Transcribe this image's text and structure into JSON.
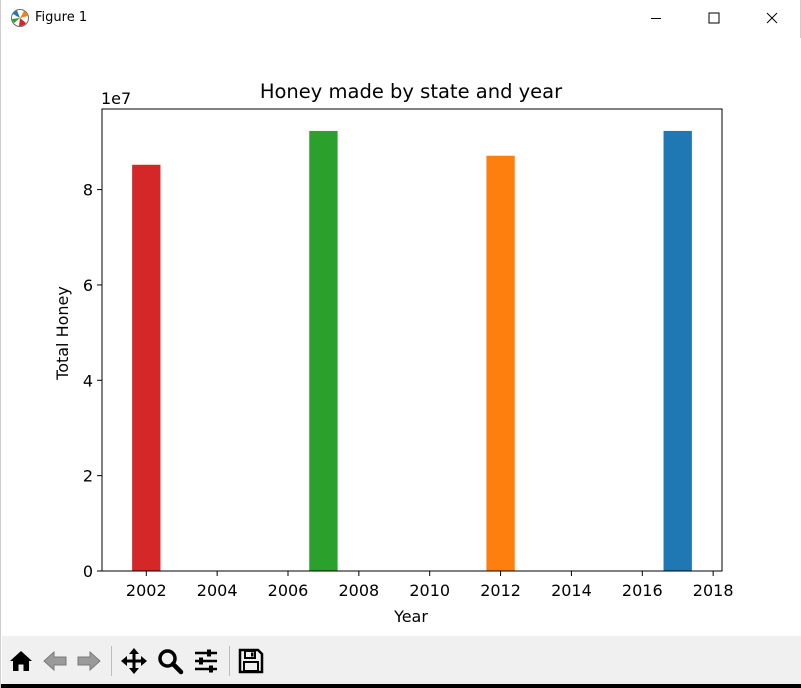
{
  "window": {
    "title": "Figure 1",
    "app_icon": "matplotlib-icon",
    "controls": [
      "minimize-icon",
      "maximize-icon",
      "close-icon"
    ]
  },
  "toolbar": {
    "buttons": [
      {
        "name": "home-button",
        "icon": "home-icon"
      },
      {
        "name": "back-button",
        "icon": "arrow-left-icon"
      },
      {
        "name": "forward-button",
        "icon": "arrow-right-icon"
      },
      {
        "name": "pan-button",
        "icon": "move-icon"
      },
      {
        "name": "zoom-button",
        "icon": "magnifier-icon"
      },
      {
        "name": "configure-subplots-button",
        "icon": "sliders-icon"
      },
      {
        "name": "save-button",
        "icon": "floppy-disk-icon"
      }
    ]
  },
  "chart_data": {
    "type": "bar",
    "title": "Honey made by state and year",
    "xlabel": "Year",
    "ylabel": "Total Honey",
    "y_offset_label": "1e7",
    "x": [
      2002,
      2007,
      2012,
      2017
    ],
    "values": [
      85200000,
      92300000,
      87100000,
      92300000
    ],
    "bar_colors": [
      "#d62728",
      "#2ca02c",
      "#ff7f0e",
      "#1f77b4"
    ],
    "bar_width": 0.8,
    "xlim": [
      2000.75,
      2018.25
    ],
    "ylim": [
      0,
      96900000
    ],
    "xticks": [
      2002,
      2004,
      2006,
      2008,
      2010,
      2012,
      2014,
      2016,
      2018
    ],
    "yticks": [
      0,
      20000000,
      40000000,
      60000000,
      80000000
    ],
    "ytick_labels": [
      "0",
      "2",
      "4",
      "6",
      "8"
    ],
    "grid": false,
    "legend": "none"
  }
}
